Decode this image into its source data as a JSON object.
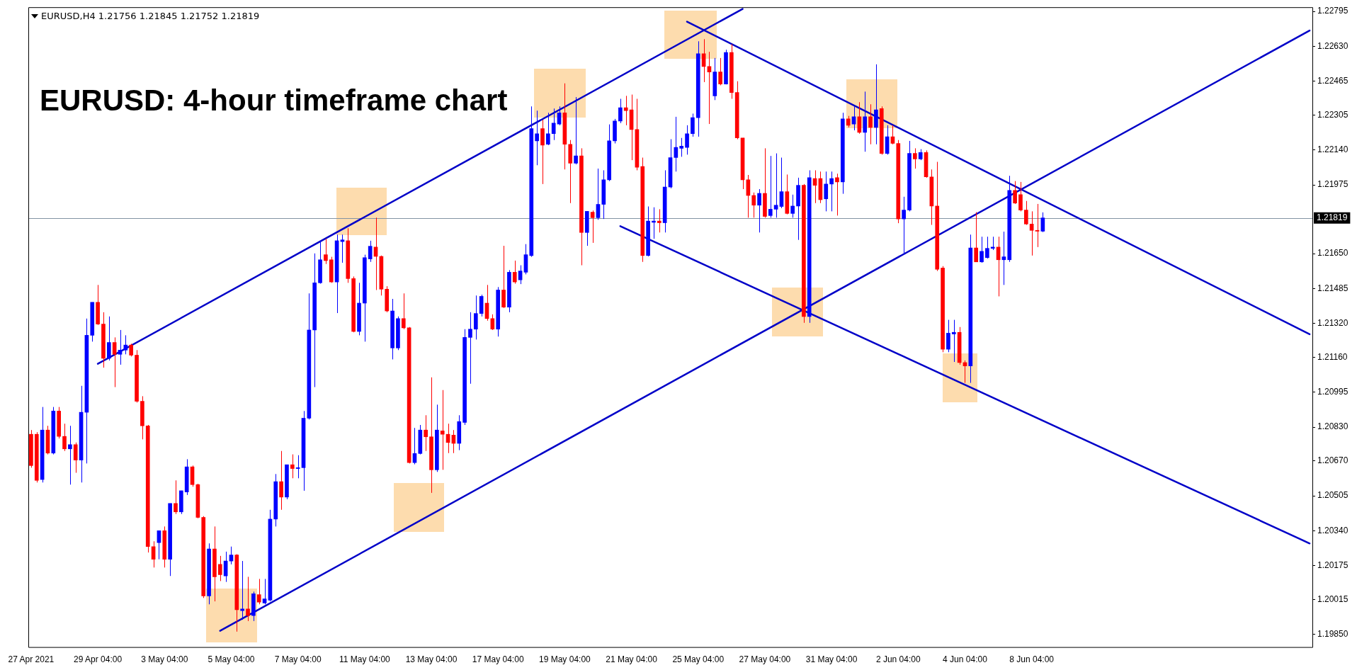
{
  "chart_data": {
    "type": "candlestick",
    "title": "EURUSD: 4-hour timeframe chart",
    "subtitle": "EURUSD,H4 1.21756 1.21845 1.21752 1.21819",
    "categories": [
      "27 Apr 2021",
      null,
      null,
      null,
      null,
      null,
      null,
      null,
      null,
      null,
      null,
      null,
      "29 Apr 04:00",
      null,
      null,
      null,
      null,
      null,
      null,
      null,
      null,
      null,
      null,
      null,
      "3 May 04:00",
      null,
      null,
      null,
      null,
      null,
      null,
      null,
      null,
      null,
      null,
      null,
      "5 May 04:00",
      null,
      null,
      null,
      null,
      null,
      null,
      null,
      null,
      null,
      null,
      null,
      "7 May 04:00",
      null,
      null,
      null,
      null,
      null,
      null,
      null,
      null,
      null,
      null,
      null,
      "11 May 04:00",
      null,
      null,
      null,
      null,
      null,
      null,
      null,
      null,
      null,
      null,
      null,
      "13 May 04:00",
      null,
      null,
      null,
      null,
      null,
      null,
      null,
      null,
      null,
      null,
      null,
      "17 May 04:00",
      null,
      null,
      null,
      null,
      null,
      null,
      null,
      null,
      null,
      null,
      null,
      "19 May 04:00",
      null,
      null,
      null,
      null,
      null,
      null,
      null,
      null,
      null,
      null,
      null,
      "21 May 04:00",
      null,
      null,
      null,
      null,
      null,
      null,
      null,
      null,
      null,
      null,
      null,
      "25 May 04:00",
      null,
      null,
      null,
      null,
      null,
      null,
      null,
      null,
      null,
      null,
      null,
      "27 May 04:00",
      null,
      null,
      null,
      null,
      null,
      null,
      null,
      null,
      null,
      null,
      null,
      "31 May 04:00",
      null,
      null,
      null,
      null,
      null,
      null,
      null,
      null,
      null,
      null,
      null,
      "2 Jun 04:00",
      null,
      null,
      null,
      null,
      null,
      null,
      null,
      null,
      null,
      null,
      null,
      "4 Jun 04:00",
      null,
      null,
      null,
      null,
      null,
      null,
      null,
      null,
      null,
      null,
      null,
      "8 Jun 04:00",
      null,
      null,
      null,
      null,
      null,
      null,
      null,
      null,
      null,
      null,
      null,
      null,
      null,
      null,
      null,
      null,
      null,
      null,
      null,
      null,
      null,
      null,
      null,
      null,
      null,
      null,
      null,
      null,
      null,
      null,
      null,
      null,
      null,
      null,
      null,
      null,
      null,
      null,
      null,
      null,
      null,
      null,
      null,
      null,
      null,
      null,
      null,
      null,
      null,
      null
    ],
    "ohlc": [
      [
        1.20796,
        1.20816,
        1.20638,
        1.20648
      ],
      [
        1.20796,
        1.20806,
        1.20568,
        1.20578
      ],
      [
        1.20582,
        1.20925,
        1.20568,
        1.20816
      ],
      [
        1.20816,
        1.20836,
        1.20701,
        1.20707
      ],
      [
        1.20707,
        1.20925,
        1.20701,
        1.20906
      ],
      [
        1.20906,
        1.20925,
        1.20776,
        1.20786
      ],
      [
        1.20786,
        1.20846,
        1.20717,
        1.20727
      ],
      [
        1.20727,
        1.20836,
        1.20558,
        1.20747
      ],
      [
        1.20747,
        1.20757,
        1.20614,
        1.20674
      ],
      [
        1.20674,
        1.21025,
        1.20568,
        1.209
      ],
      [
        1.209,
        1.21343,
        1.20658,
        1.21264
      ],
      [
        1.21264,
        1.2142,
        1.21234,
        1.2142
      ],
      [
        1.2142,
        1.21502,
        1.21313,
        1.21317
      ],
      [
        1.21317,
        1.21373,
        1.21111,
        1.21155
      ],
      [
        1.21155,
        1.21353,
        1.21145,
        1.2123
      ],
      [
        1.2123,
        1.21254,
        1.21019,
        1.21174
      ],
      [
        1.21174,
        1.21289,
        1.21125,
        1.21194
      ],
      [
        1.21194,
        1.21264,
        1.21174,
        1.21218
      ],
      [
        1.21218,
        1.21224,
        1.21164,
        1.2117
      ],
      [
        1.2117,
        1.21194,
        1.20946,
        1.20952
      ],
      [
        1.20952,
        1.20976,
        1.20772,
        1.20836
      ],
      [
        1.20836,
        1.2084,
        1.20237,
        1.20265
      ],
      [
        1.20265,
        1.2029,
        1.20166,
        1.20205
      ],
      [
        1.20284,
        1.2034,
        1.20205,
        1.2034
      ],
      [
        1.2034,
        1.2036,
        1.20166,
        1.20205
      ],
      [
        1.20205,
        1.20469,
        1.20126,
        1.20469
      ],
      [
        1.20469,
        1.20578,
        1.20419,
        1.20429
      ],
      [
        1.20429,
        1.20529,
        1.20419,
        1.20529
      ],
      [
        1.20523,
        1.20678,
        1.20509,
        1.20642
      ],
      [
        1.20642,
        1.20648,
        1.20548,
        1.20558
      ],
      [
        1.20558,
        1.20562,
        1.20399,
        1.20403
      ],
      [
        1.20403,
        1.20409,
        1.20022,
        1.20032
      ],
      [
        1.20032,
        1.2028,
        1.19992,
        1.20254
      ],
      [
        1.20254,
        1.2036,
        1.20006,
        1.20122
      ],
      [
        1.20181,
        1.20221,
        1.20102,
        1.20132
      ],
      [
        1.20126,
        1.20241,
        1.20098,
        1.20197
      ],
      [
        1.20197,
        1.20265,
        1.20181,
        1.20225
      ],
      [
        1.20225,
        1.20229,
        1.19863,
        1.19966
      ],
      [
        1.19962,
        1.20197,
        1.19919,
        1.1997
      ],
      [
        1.1997,
        1.20122,
        1.19913,
        1.19939
      ],
      [
        1.19939,
        1.20052,
        1.19913,
        1.20042
      ],
      [
        1.20038,
        1.20112,
        1.19992,
        1.20002
      ],
      [
        1.19998,
        1.20112,
        1.19992,
        1.20018
      ],
      [
        1.20012,
        1.20439,
        1.20006,
        1.20395
      ],
      [
        1.20395,
        1.20608,
        1.2036,
        1.20572
      ],
      [
        1.20572,
        1.20717,
        1.20439,
        1.20499
      ],
      [
        1.20499,
        1.20652,
        1.20489,
        1.20652
      ],
      [
        1.20652,
        1.20701,
        1.20588,
        1.20634
      ],
      [
        1.20634,
        1.20697,
        1.20588,
        1.20638
      ],
      [
        1.20638,
        1.20906,
        1.20529,
        1.20872
      ],
      [
        1.20872,
        1.21462,
        1.20866,
        1.21289
      ],
      [
        1.21289,
        1.21651,
        1.21019,
        1.21512
      ],
      [
        1.21512,
        1.21711,
        1.21508,
        1.21621
      ],
      [
        1.21645,
        1.2172,
        1.21601,
        1.21617
      ],
      [
        1.21621,
        1.21635,
        1.21512,
        1.21516
      ],
      [
        1.21516,
        1.2174,
        1.21369,
        1.21711
      ],
      [
        1.21707,
        1.2174,
        1.21607,
        1.21715
      ],
      [
        1.21711,
        1.2177,
        1.21512,
        1.21532
      ],
      [
        1.21532,
        1.21542,
        1.21278,
        1.21282
      ],
      [
        1.21282,
        1.21512,
        1.21264,
        1.21416
      ],
      [
        1.21416,
        1.21645,
        1.21234,
        1.21631
      ],
      [
        1.21625,
        1.21711,
        1.21611,
        1.21685
      ],
      [
        1.21681,
        1.2182,
        1.21478,
        1.21637
      ],
      [
        1.21637,
        1.21641,
        1.21452,
        1.21482
      ],
      [
        1.21482,
        1.21496,
        1.21373,
        1.21379
      ],
      [
        1.21204,
        1.21436,
        1.2115,
        1.21379
      ],
      [
        1.21204,
        1.21353,
        1.21194,
        1.21343
      ],
      [
        1.21343,
        1.21462,
        1.21293,
        1.21299
      ],
      [
        1.21299,
        1.21303,
        1.20658,
        1.20662
      ],
      [
        1.20662,
        1.20826,
        1.20654,
        1.20705
      ],
      [
        1.20705,
        1.2084,
        1.20701,
        1.20816
      ],
      [
        1.20816,
        1.20886,
        1.20717,
        1.20784
      ],
      [
        1.20784,
        1.21065,
        1.20519,
        1.20628
      ],
      [
        1.20628,
        1.20936,
        1.20618,
        1.20816
      ],
      [
        1.20812,
        1.21005,
        1.20628,
        1.20796
      ],
      [
        1.20796,
        1.20846,
        1.20707,
        1.20757
      ],
      [
        1.20792,
        1.20816,
        1.20707,
        1.20753
      ],
      [
        1.20753,
        1.20886,
        1.20721,
        1.20856
      ],
      [
        1.20852,
        1.21293,
        1.2084,
        1.21254
      ],
      [
        1.21254,
        1.21373,
        1.21035,
        1.21293
      ],
      [
        1.21293,
        1.21452,
        1.21244,
        1.21367
      ],
      [
        1.21367,
        1.21456,
        1.21353,
        1.21448
      ],
      [
        1.21416,
        1.21502,
        1.21333,
        1.21343
      ],
      [
        1.21343,
        1.21363,
        1.21289,
        1.21293
      ],
      [
        1.21293,
        1.21492,
        1.21258,
        1.21478
      ],
      [
        1.21478,
        1.21687,
        1.21393,
        1.21397
      ],
      [
        1.21397,
        1.21572,
        1.21373,
        1.21562
      ],
      [
        1.21562,
        1.21617,
        1.21508,
        1.21516
      ],
      [
        1.21526,
        1.21595,
        1.21506,
        1.21568
      ],
      [
        1.21562,
        1.21695,
        1.21552,
        1.21645
      ],
      [
        1.21641,
        1.22346,
        1.21635,
        1.22241
      ],
      [
        1.22183,
        1.22326,
        1.22068,
        1.22217
      ],
      [
        1.22241,
        1.22283,
        1.21979,
        1.22163
      ],
      [
        1.22167,
        1.22316,
        1.22163,
        1.22217
      ],
      [
        1.22217,
        1.22336,
        1.22187,
        1.22267
      ],
      [
        1.22263,
        1.22346,
        1.22257,
        1.22316
      ],
      [
        1.22316,
        1.22455,
        1.22048,
        1.22167
      ],
      [
        1.22167,
        1.22187,
        1.21889,
        1.22078
      ],
      [
        1.22078,
        1.2239,
        1.22072,
        1.22112
      ],
      [
        1.22112,
        1.22148,
        1.21595,
        1.2175
      ],
      [
        1.2175,
        1.2185,
        1.21687,
        1.2185
      ],
      [
        1.21846,
        1.21854,
        1.21701,
        1.2182
      ],
      [
        1.2182,
        1.22052,
        1.2181,
        1.21883
      ],
      [
        1.21883,
        1.22044,
        1.21814,
        1.21999
      ],
      [
        1.21999,
        1.22261,
        1.21993,
        1.22183
      ],
      [
        1.22183,
        1.22287,
        1.22171,
        1.22277
      ],
      [
        1.22277,
        1.22382,
        1.22267,
        1.2234
      ],
      [
        1.2234,
        1.22396,
        1.22257,
        1.22326
      ],
      [
        1.2233,
        1.22402,
        1.22092,
        1.22237
      ],
      [
        1.22237,
        1.22382,
        1.22044,
        1.22058
      ],
      [
        1.22062,
        1.22104,
        1.21611,
        1.21641
      ],
      [
        1.21641,
        1.21873,
        1.21637,
        1.21804
      ],
      [
        1.21798,
        1.21869,
        1.2172,
        1.21804
      ],
      [
        1.21804,
        1.2186,
        1.2175,
        1.21796
      ],
      [
        1.21796,
        1.22044,
        1.2175,
        1.21965
      ],
      [
        1.21965,
        1.22191,
        1.21959,
        1.22104
      ],
      [
        1.22104,
        1.22297,
        1.22038,
        1.22152
      ],
      [
        1.22148,
        1.22197,
        1.22108,
        1.22158
      ],
      [
        1.22152,
        1.22257,
        1.22118,
        1.22217
      ],
      [
        1.22217,
        1.22312,
        1.22203,
        1.22293
      ],
      [
        1.22293,
        1.22654,
        1.22203,
        1.22595
      ],
      [
        1.22595,
        1.22664,
        1.22461,
        1.22535
      ],
      [
        1.22535,
        1.22604,
        1.22263,
        1.22509
      ],
      [
        1.22396,
        1.22575,
        1.22376,
        1.22509
      ],
      [
        1.22509,
        1.22575,
        1.22446,
        1.22452
      ],
      [
        1.22452,
        1.22614,
        1.2245,
        1.22601
      ],
      [
        1.22601,
        1.2264,
        1.22382,
        1.22412
      ],
      [
        1.22412,
        1.22465,
        1.22191,
        1.22197
      ],
      [
        1.22197,
        1.22197,
        1.21955,
        1.21999
      ],
      [
        1.21999,
        1.22022,
        1.2182,
        1.21925
      ],
      [
        1.21925,
        1.21939,
        1.2182,
        1.21879
      ],
      [
        1.21879,
        1.21955,
        1.2175,
        1.21935
      ],
      [
        1.21935,
        1.22148,
        1.2182,
        1.21826
      ],
      [
        1.2183,
        1.22112,
        1.2182,
        1.2186
      ],
      [
        1.2186,
        1.22124,
        1.2182,
        1.21879
      ],
      [
        1.21873,
        1.22104,
        1.21865,
        1.21943
      ],
      [
        1.21943,
        1.22024,
        1.21836,
        1.2184
      ],
      [
        1.2184,
        1.21929,
        1.2182,
        1.21875
      ],
      [
        1.21875,
        1.22009,
        1.21715,
        1.21973
      ],
      [
        1.21973,
        1.21979,
        1.21323,
        1.21353
      ],
      [
        1.21353,
        1.22044,
        1.21323,
        1.22009
      ],
      [
        1.22005,
        1.22044,
        1.21889,
        1.21973
      ],
      [
        1.22005,
        1.22038,
        1.21889,
        1.21905
      ],
      [
        1.21909,
        1.22038,
        1.2185,
        1.21979
      ],
      [
        1.21979,
        1.22038,
        1.2185,
        1.22005
      ],
      [
        1.22009,
        1.22028,
        1.2183,
        1.21989
      ],
      [
        1.21989,
        1.22316,
        1.21933,
        1.22287
      ],
      [
        1.22287,
        1.22301,
        1.22247,
        1.22257
      ],
      [
        1.22263,
        1.22346,
        1.22233,
        1.22297
      ],
      [
        1.22297,
        1.22366,
        1.22217,
        1.22223
      ],
      [
        1.22223,
        1.22416,
        1.22132,
        1.22297
      ],
      [
        1.22297,
        1.22356,
        1.22167,
        1.22247
      ],
      [
        1.22247,
        1.22545,
        1.22167,
        1.2233
      ],
      [
        1.22336,
        1.22346,
        1.22118,
        1.22124
      ],
      [
        1.22124,
        1.22257,
        1.22118,
        1.22203
      ],
      [
        1.22203,
        1.22257,
        1.22167,
        1.22171
      ],
      [
        1.22171,
        1.22187,
        1.21794,
        1.21814
      ],
      [
        1.21814,
        1.21919,
        1.21647,
        1.21856
      ],
      [
        1.21856,
        1.22183,
        1.2185,
        1.22124
      ],
      [
        1.22124,
        1.22148,
        1.22052,
        1.22098
      ],
      [
        1.22098,
        1.22144,
        1.22092,
        1.22128
      ],
      [
        1.22128,
        1.22138,
        1.22009,
        1.22013
      ],
      [
        1.22013,
        1.22048,
        1.21786,
        1.21875
      ],
      [
        1.21875,
        1.22084,
        1.21568,
        1.21576
      ],
      [
        1.21582,
        1.21591,
        1.21184,
        1.21198
      ],
      [
        1.21198,
        1.21337,
        1.21184,
        1.21274
      ],
      [
        1.2127,
        1.21337,
        1.21138,
        1.21278
      ],
      [
        1.21278,
        1.21303,
        1.21125,
        1.21135
      ],
      [
        1.21135,
        1.21145,
        1.21039,
        1.21119
      ],
      [
        1.21119,
        1.2174,
        1.21039,
        1.21677
      ],
      [
        1.21677,
        1.21846,
        1.21611,
        1.21611
      ],
      [
        1.21611,
        1.2173,
        1.21607,
        1.21661
      ],
      [
        1.21631,
        1.2173,
        1.21627,
        1.21675
      ],
      [
        1.21675,
        1.2173,
        1.21667,
        1.21681
      ],
      [
        1.21681,
        1.2173,
        1.21448,
        1.21621
      ],
      [
        1.21621,
        1.21754,
        1.21502,
        1.21635
      ],
      [
        1.21621,
        1.22018,
        1.21611,
        1.21949
      ],
      [
        1.21949,
        1.21993,
        1.21885,
        1.21889
      ],
      [
        1.21929,
        1.21989,
        1.2185,
        1.21856
      ],
      [
        1.21856,
        1.21899,
        1.21786,
        1.2179
      ],
      [
        1.2179,
        1.2185,
        1.21641,
        1.2176
      ],
      [
        1.2176,
        1.21885,
        1.21681,
        1.21756
      ],
      [
        1.21756,
        1.21845,
        1.21752,
        1.21819
      ],
      null,
      null,
      null,
      null,
      null,
      null,
      null,
      null,
      null,
      null,
      null,
      null,
      null,
      null,
      null,
      null,
      null,
      null,
      null,
      null,
      null,
      null,
      null,
      null,
      null,
      null,
      null,
      null,
      null,
      null,
      null,
      null,
      null,
      null,
      null,
      null,
      null,
      null,
      null,
      null,
      null,
      null,
      null,
      null,
      null,
      null,
      null,
      null
    ],
    "colors": [
      "#ff0000",
      "#ff0000",
      "#0000ff",
      "#ff0000",
      "#0000ff",
      "#ff0000",
      "#ff0000",
      "#0000ff",
      "#ff0000",
      "#0000ff",
      "#0000ff",
      "#0000ff",
      "#ff0000",
      "#ff0000",
      "#0000ff",
      "#ff0000",
      "#0000ff",
      "#0000ff",
      "#ff0000",
      "#ff0000",
      "#ff0000",
      "#ff0000",
      "#ff0000",
      "#0000ff",
      "#ff0000",
      "#0000ff",
      "#ff0000",
      "#0000ff",
      "#0000ff",
      "#ff0000",
      "#ff0000",
      "#ff0000",
      "#0000ff",
      "#ff0000",
      "#ff0000",
      "#0000ff",
      "#0000ff",
      "#ff0000",
      "#0000ff",
      "#ff0000",
      "#0000ff",
      "#ff0000",
      "#0000ff",
      "#0000ff",
      "#0000ff",
      "#ff0000",
      "#0000ff",
      "#ff0000",
      "#0000ff",
      "#0000ff",
      "#0000ff",
      "#0000ff",
      "#0000ff",
      "#ff0000",
      "#ff0000",
      "#0000ff",
      "#0000ff",
      "#ff0000",
      "#ff0000",
      "#0000ff",
      "#0000ff",
      "#0000ff",
      "#ff0000",
      "#ff0000",
      "#ff0000",
      "#0000ff",
      "#0000ff",
      "#ff0000",
      "#ff0000",
      "#0000ff",
      "#0000ff",
      "#ff0000",
      "#ff0000",
      "#0000ff",
      "#ff0000",
      "#ff0000",
      "#ff0000",
      "#0000ff",
      "#0000ff",
      "#0000ff",
      "#0000ff",
      "#0000ff",
      "#ff0000",
      "#ff0000",
      "#0000ff",
      "#ff0000",
      "#0000ff",
      "#ff0000",
      "#0000ff",
      "#0000ff",
      "#0000ff",
      "#0000ff",
      "#ff0000",
      "#0000ff",
      "#0000ff",
      "#0000ff",
      "#ff0000",
      "#ff0000",
      "#0000ff",
      "#ff0000",
      "#0000ff",
      "#ff0000",
      "#0000ff",
      "#0000ff",
      "#0000ff",
      "#0000ff",
      "#0000ff",
      "#ff0000",
      "#ff0000",
      "#ff0000",
      "#ff0000",
      "#0000ff",
      "#0000ff",
      "#ff0000",
      "#0000ff",
      "#0000ff",
      "#0000ff",
      "#0000ff",
      "#0000ff",
      "#0000ff",
      "#0000ff",
      "#ff0000",
      "#ff0000",
      "#0000ff",
      "#ff0000",
      "#0000ff",
      "#ff0000",
      "#ff0000",
      "#ff0000",
      "#ff0000",
      "#ff0000",
      "#0000ff",
      "#ff0000",
      "#0000ff",
      "#0000ff",
      "#0000ff",
      "#ff0000",
      "#0000ff",
      "#0000ff",
      "#ff0000",
      "#0000ff",
      "#ff0000",
      "#ff0000",
      "#0000ff",
      "#0000ff",
      "#ff0000",
      "#0000ff",
      "#ff0000",
      "#0000ff",
      "#ff0000",
      "#0000ff",
      "#ff0000",
      "#0000ff",
      "#ff0000",
      "#0000ff",
      "#ff0000",
      "#ff0000",
      "#0000ff",
      "#0000ff",
      "#ff0000",
      "#0000ff",
      "#ff0000",
      "#ff0000",
      "#ff0000",
      "#ff0000",
      "#0000ff",
      "#0000ff",
      "#ff0000",
      "#ff0000",
      "#0000ff",
      "#ff0000",
      "#0000ff",
      "#0000ff",
      "#0000ff",
      "#ff0000",
      "#0000ff",
      "#0000ff",
      "#ff0000",
      "#ff0000",
      "#ff0000",
      "#ff0000",
      "#ff0000",
      "#0000ff",
      null,
      null,
      null,
      null,
      null,
      null,
      null,
      null,
      null,
      null,
      null,
      null,
      null,
      null,
      null,
      null,
      null,
      null,
      null,
      null,
      null,
      null,
      null,
      null,
      null,
      null,
      null,
      null,
      null,
      null,
      null,
      null,
      null,
      null,
      null,
      null,
      null,
      null,
      null,
      null,
      null,
      null,
      null,
      null,
      null,
      null,
      null,
      null
    ],
    "series": [
      {
        "type": "line",
        "color": "#0000c8",
        "values": [
          null,
          null,
          null,
          null,
          null,
          null,
          null,
          null,
          null,
          null,
          null,
          null,
          1.21129,
          null,
          null,
          null,
          null,
          null,
          null,
          null,
          null,
          null,
          null,
          null,
          null,
          null,
          null,
          null,
          null,
          null,
          null,
          null,
          null,
          null,
          null,
          null,
          null,
          null,
          null,
          null,
          null,
          null,
          null,
          null,
          null,
          null,
          null,
          null,
          null,
          null,
          null,
          null,
          null,
          null,
          null,
          null,
          null,
          null,
          null,
          null,
          null,
          null,
          null,
          null,
          null,
          null,
          null,
          null,
          null,
          null,
          null,
          null,
          null,
          null,
          null,
          null,
          null,
          null,
          null,
          null,
          null,
          null,
          null,
          null,
          null,
          null,
          null,
          null,
          null,
          null,
          null,
          null,
          null,
          null,
          null,
          null,
          null,
          null,
          null,
          null,
          null,
          null,
          null,
          null,
          null,
          null,
          null,
          null,
          null,
          null,
          null,
          null,
          null,
          null,
          null,
          null,
          null,
          null,
          null,
          null,
          null,
          null,
          null,
          null,
          null,
          null,
          null,
          null,
          1.22807,
          null,
          null,
          null,
          null,
          null,
          null,
          null,
          null,
          null,
          null,
          null,
          null,
          null,
          null,
          null,
          null,
          null,
          null,
          null,
          null,
          null,
          null,
          null,
          null,
          null,
          null,
          null,
          null,
          null,
          null,
          null,
          null,
          null,
          null,
          null,
          null,
          null,
          null,
          null,
          null,
          null,
          null,
          null,
          null,
          null,
          null,
          null,
          null,
          null,
          null,
          null,
          null,
          null,
          null,
          null,
          null,
          null,
          null,
          null,
          null,
          null,
          null,
          null,
          null,
          null,
          null,
          null,
          null,
          null,
          null,
          null,
          null,
          null,
          null,
          null,
          null,
          null,
          null,
          null,
          null,
          null,
          null,
          null,
          null,
          null,
          null,
          null,
          null,
          null,
          null,
          null,
          null,
          null,
          null,
          null,
          null,
          null,
          null,
          null,
          null,
          null,
          null
        ]
      },
      {
        "type": "line",
        "color": "#0000c8",
        "values": [
          null,
          null,
          null,
          null,
          null,
          null,
          null,
          null,
          null,
          null,
          null,
          null,
          null,
          null,
          null,
          null,
          null,
          null,
          null,
          null,
          null,
          null,
          null,
          null,
          null,
          null,
          null,
          null,
          null,
          null,
          null,
          null,
          null,
          null,
          1.19867,
          null,
          null,
          null,
          null,
          null,
          null,
          null,
          null,
          null,
          null,
          null,
          null,
          null,
          null,
          null,
          null,
          null,
          null,
          null,
          null,
          null,
          null,
          null,
          null,
          null,
          null,
          null,
          null,
          null,
          null,
          null,
          null,
          null,
          null,
          null,
          null,
          null,
          null,
          null,
          null,
          null,
          null,
          null,
          null,
          null,
          null,
          null,
          null,
          null,
          null,
          null,
          null,
          null,
          null,
          null,
          null,
          null,
          null,
          null,
          null,
          null,
          null,
          null,
          null,
          null,
          null,
          null,
          null,
          null,
          null,
          null,
          null,
          null,
          null,
          null,
          null,
          null,
          null,
          null,
          null,
          null,
          null,
          null,
          null,
          null,
          null,
          null,
          null,
          null,
          null,
          null,
          null,
          null,
          null,
          null,
          null,
          null,
          null,
          null,
          null,
          null,
          null,
          null,
          null,
          null,
          null,
          null,
          null,
          null,
          null,
          null,
          null,
          null,
          null,
          null,
          null,
          null,
          null,
          null,
          null,
          null,
          null,
          null,
          null,
          null,
          null,
          null,
          null,
          null,
          null,
          null,
          null,
          null,
          null,
          null,
          null,
          null,
          null,
          null,
          null,
          null,
          null,
          null,
          null,
          null,
          null,
          null,
          null,
          null,
          null,
          null,
          null,
          null,
          null,
          null,
          null,
          null,
          null,
          null,
          null,
          null,
          null,
          null,
          null,
          null,
          null,
          null,
          null,
          null,
          null,
          null,
          null,
          null,
          null,
          null,
          null,
          null,
          null,
          null,
          null,
          null,
          null,
          null,
          null,
          null,
          null,
          null,
          null,
          null,
          null,
          null,
          null,
          null,
          null,
          null,
          1.22705
        ]
      },
      {
        "type": "line",
        "color": "#0000c8",
        "values": [
          null,
          null,
          null,
          null,
          null,
          null,
          null,
          null,
          null,
          null,
          null,
          null,
          null,
          null,
          null,
          null,
          null,
          null,
          null,
          null,
          null,
          null,
          null,
          null,
          null,
          null,
          null,
          null,
          null,
          null,
          null,
          null,
          null,
          null,
          null,
          null,
          null,
          null,
          null,
          null,
          null,
          null,
          null,
          null,
          null,
          null,
          null,
          null,
          null,
          null,
          null,
          null,
          null,
          null,
          null,
          null,
          null,
          null,
          null,
          null,
          null,
          null,
          null,
          null,
          null,
          null,
          null,
          null,
          null,
          null,
          null,
          null,
          null,
          null,
          null,
          null,
          null,
          null,
          null,
          null,
          null,
          null,
          null,
          null,
          null,
          null,
          null,
          null,
          null,
          null,
          null,
          null,
          null,
          null,
          null,
          null,
          null,
          null,
          null,
          null,
          null,
          null,
          null,
          null,
          null,
          null,
          null,
          null,
          null,
          null,
          null,
          null,
          null,
          null,
          null,
          null,
          null,
          null,
          1.22747,
          null,
          null,
          null,
          null,
          null,
          null,
          null,
          null,
          null,
          null,
          null,
          null,
          null,
          null,
          null,
          null,
          null,
          null,
          null,
          null,
          null,
          null,
          null,
          null,
          null,
          null,
          null,
          null,
          null,
          null,
          null,
          null,
          null,
          null,
          null,
          null,
          null,
          null,
          null,
          null,
          null,
          null,
          null,
          null,
          null,
          null,
          null,
          null,
          null,
          null,
          null,
          null,
          null,
          null,
          null,
          null,
          null,
          null,
          null,
          null,
          null,
          null,
          null,
          null,
          null,
          null,
          null,
          null,
          null,
          null,
          null,
          null,
          null,
          null,
          null,
          null,
          null,
          null,
          null,
          null,
          null,
          null,
          null,
          null,
          null,
          null,
          null,
          null,
          null,
          null,
          null,
          null,
          null,
          null,
          null,
          null,
          null,
          null,
          null,
          null,
          null,
          null,
          null,
          null,
          null,
          null,
          null,
          null,
          null,
          null,
          null,
          1.21269
        ]
      },
      {
        "type": "line",
        "color": "#0000c8",
        "values": [
          null,
          null,
          null,
          null,
          null,
          null,
          null,
          null,
          null,
          null,
          null,
          null,
          null,
          null,
          null,
          null,
          null,
          null,
          null,
          null,
          null,
          null,
          null,
          null,
          null,
          null,
          null,
          null,
          null,
          null,
          null,
          null,
          null,
          null,
          null,
          null,
          null,
          null,
          null,
          null,
          null,
          null,
          null,
          null,
          null,
          null,
          null,
          null,
          null,
          null,
          null,
          null,
          null,
          null,
          null,
          null,
          null,
          null,
          null,
          null,
          null,
          null,
          null,
          null,
          null,
          null,
          null,
          null,
          null,
          null,
          null,
          null,
          null,
          null,
          null,
          null,
          null,
          null,
          null,
          null,
          null,
          null,
          null,
          null,
          null,
          null,
          null,
          null,
          null,
          null,
          null,
          null,
          null,
          null,
          null,
          null,
          null,
          null,
          null,
          null,
          null,
          null,
          null,
          null,
          null,
          null,
          1.2178,
          null,
          null,
          null,
          null,
          null,
          null,
          null,
          null,
          null,
          null,
          null,
          null,
          null,
          null,
          null,
          null,
          null,
          null,
          null,
          null,
          null,
          null,
          null,
          null,
          null,
          null,
          null,
          null,
          null,
          null,
          null,
          null,
          null,
          null,
          null,
          null,
          null,
          null,
          null,
          null,
          null,
          null,
          null,
          null,
          null,
          null,
          null,
          null,
          null,
          null,
          null,
          null,
          null,
          null,
          null,
          null,
          null,
          null,
          null,
          null,
          null,
          null,
          null,
          null,
          null,
          null,
          null,
          null,
          null,
          null,
          null,
          null,
          null,
          null,
          null,
          null,
          null,
          null,
          null,
          null,
          null,
          null,
          null,
          null,
          null,
          null,
          null,
          null,
          null,
          null,
          null,
          null,
          null,
          null,
          null,
          null,
          null,
          null,
          null,
          null,
          null,
          null,
          null,
          null,
          null,
          null,
          null,
          null,
          null,
          null,
          null,
          null,
          null,
          null,
          null,
          null,
          null,
          null,
          null,
          null,
          null,
          null,
          null,
          1.2028
        ]
      }
    ],
    "ylim": [
      1.1979,
      1.22815
    ],
    "yticks": [
      {
        "value": 1.22795,
        "label": "1.22795"
      },
      {
        "value": 1.2263,
        "label": "1.22630"
      },
      {
        "value": 1.22465,
        "label": "1.22465"
      },
      {
        "value": 1.22305,
        "label": "1.22305"
      },
      {
        "value": 1.2214,
        "label": "1.22140"
      },
      {
        "value": 1.21975,
        "label": "1.21975"
      },
      {
        "value": 1.2165,
        "label": "1.21650"
      },
      {
        "value": 1.21485,
        "label": "1.21485"
      },
      {
        "value": 1.2132,
        "label": "1.21320"
      },
      {
        "value": 1.2116,
        "label": "1.21160"
      },
      {
        "value": 1.20995,
        "label": "1.20995"
      },
      {
        "value": 1.2083,
        "label": "1.20830"
      },
      {
        "value": 1.2067,
        "label": "1.20670"
      },
      {
        "value": 1.20505,
        "label": "1.20505"
      },
      {
        "value": 1.2034,
        "label": "1.20340"
      },
      {
        "value": 1.20175,
        "label": "1.20175"
      },
      {
        "value": 1.20015,
        "label": "1.20015"
      },
      {
        "value": 1.1985,
        "label": "1.19850"
      }
    ],
    "ref_lines": [
      {
        "axis": "y",
        "value": 1.21819,
        "label": "1.21819",
        "color": "#8293a3"
      }
    ]
  }
}
